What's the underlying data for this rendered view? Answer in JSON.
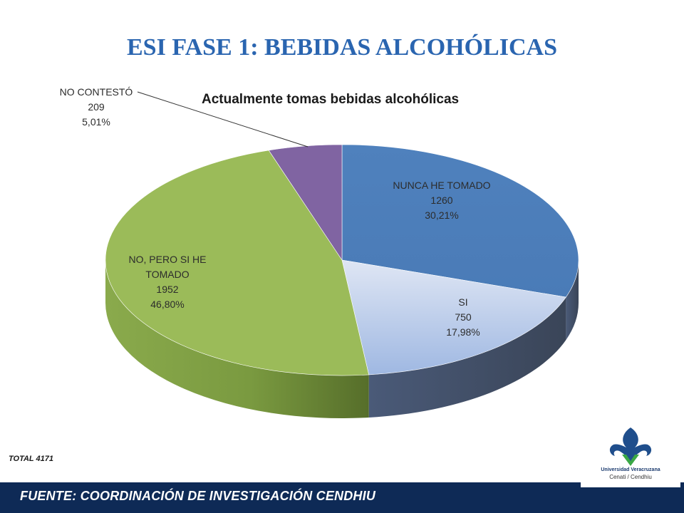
{
  "slide": {
    "title": "ESI FASE 1: BEBIDAS ALCOHÓLICAS",
    "total": "TOTAL 4171",
    "footer": "FUENTE:  COORDINACIÓN DE   INVESTIGACIÓN CENDHIU"
  },
  "logo": {
    "name": "Universidad Veracruzana",
    "sub": "Cenati / Cendhiu"
  },
  "chart_data": {
    "type": "pie",
    "title": "Actualmente tomas bebidas alcohólicas",
    "style": "3d",
    "slices": [
      {
        "label": "NUNCA HE TOMADO",
        "value": 1260,
        "percent": "30,21%",
        "color": "#4f81bd"
      },
      {
        "label": "SI",
        "value": 750,
        "percent": "17,98%",
        "color": "#c4d3ee"
      },
      {
        "label": "NO, PERO SI HE TOMADO",
        "value": 1952,
        "percent": "46,80%",
        "color": "#9bbb59"
      },
      {
        "label": "NO CONTESTÓ",
        "value": 209,
        "percent": "5,01%",
        "color": "#8064a2"
      }
    ]
  }
}
